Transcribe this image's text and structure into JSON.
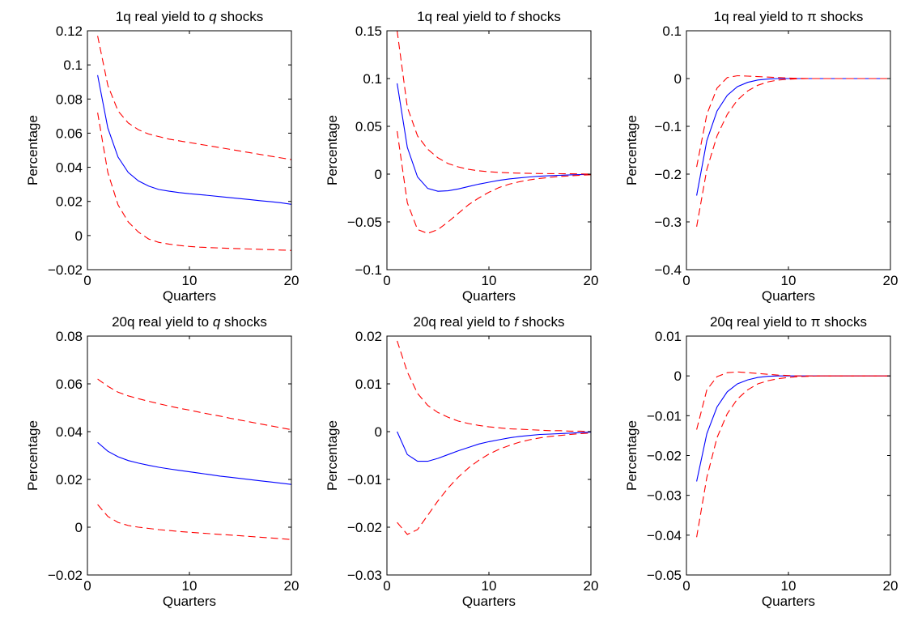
{
  "chart_data": [
    {
      "type": "line",
      "title": {
        "prefix": "1q real yield to ",
        "symbol": "q",
        "suffix": " shocks"
      },
      "xlabel": "Quarters",
      "ylabel": "Percentage",
      "xlim": [
        0,
        20
      ],
      "ylim": [
        -0.02,
        0.12
      ],
      "xticks": [
        0,
        10,
        20
      ],
      "xtick_labels": [
        "0",
        "10",
        "20"
      ],
      "yticks": [
        -0.02,
        0,
        0.02,
        0.04,
        0.06,
        0.08,
        0.1,
        0.12
      ],
      "ytick_labels": [
        "−0.02",
        "0",
        "0.02",
        "0.04",
        "0.06",
        "0.08",
        "0.1",
        "0.12"
      ],
      "x": [
        1,
        2,
        3,
        4,
        5,
        6,
        7,
        8,
        9,
        10,
        11,
        12,
        13,
        14,
        15,
        16,
        17,
        18,
        19,
        20
      ],
      "series": [
        {
          "role": "response",
          "color": "#0000ff",
          "style": "solid",
          "values": [
            0.094,
            0.063,
            0.046,
            0.037,
            0.032,
            0.029,
            0.027,
            0.026,
            0.0252,
            0.0245,
            0.024,
            0.0234,
            0.0228,
            0.0222,
            0.0216,
            0.021,
            0.0204,
            0.0198,
            0.0192,
            0.0183
          ]
        },
        {
          "role": "upper-band",
          "color": "#ff0000",
          "style": "dashed",
          "values": [
            0.117,
            0.088,
            0.073,
            0.066,
            0.062,
            0.0595,
            0.058,
            0.0565,
            0.0555,
            0.0545,
            0.0535,
            0.0525,
            0.0515,
            0.0505,
            0.0495,
            0.0485,
            0.0475,
            0.0465,
            0.0455,
            0.0445
          ]
        },
        {
          "role": "lower-band",
          "color": "#ff0000",
          "style": "dashed",
          "values": [
            0.072,
            0.037,
            0.018,
            0.008,
            0.002,
            -0.002,
            -0.004,
            -0.005,
            -0.0058,
            -0.0064,
            -0.0068,
            -0.0071,
            -0.0073,
            -0.0075,
            -0.0077,
            -0.0079,
            -0.0081,
            -0.0083,
            -0.0085,
            -0.0087
          ]
        }
      ]
    },
    {
      "type": "line",
      "title": {
        "prefix": "1q real yield to ",
        "symbol": "f",
        "suffix": " shocks"
      },
      "xlabel": "Quarters",
      "ylabel": "Percentage",
      "xlim": [
        0,
        20
      ],
      "ylim": [
        -0.1,
        0.15
      ],
      "xticks": [
        0,
        10,
        20
      ],
      "xtick_labels": [
        "0",
        "10",
        "20"
      ],
      "yticks": [
        -0.1,
        -0.05,
        0,
        0.05,
        0.1,
        0.15
      ],
      "ytick_labels": [
        "−0.1",
        "−0.05",
        "0",
        "0.05",
        "0.1",
        "0.15"
      ],
      "x": [
        1,
        2,
        3,
        4,
        5,
        6,
        7,
        8,
        9,
        10,
        11,
        12,
        13,
        14,
        15,
        16,
        17,
        18,
        19,
        20
      ],
      "series": [
        {
          "role": "response",
          "color": "#0000ff",
          "style": "solid",
          "values": [
            0.095,
            0.028,
            -0.003,
            -0.015,
            -0.018,
            -0.0175,
            -0.0155,
            -0.013,
            -0.0105,
            -0.0085,
            -0.0065,
            -0.005,
            -0.004,
            -0.003,
            -0.0022,
            -0.0016,
            -0.0012,
            -0.0008,
            -0.0005,
            -0.0002
          ]
        },
        {
          "role": "upper-band",
          "color": "#ff0000",
          "style": "dashed",
          "values": [
            0.15,
            0.07,
            0.04,
            0.026,
            0.017,
            0.011,
            0.0075,
            0.005,
            0.0035,
            0.0025,
            0.0018,
            0.0013,
            0.001,
            0.0008,
            0.0006,
            0.0005,
            0.0004,
            0.0003,
            0.0002,
            0.0001
          ]
        },
        {
          "role": "lower-band",
          "color": "#ff0000",
          "style": "dashed",
          "values": [
            0.045,
            -0.03,
            -0.058,
            -0.062,
            -0.058,
            -0.05,
            -0.041,
            -0.032,
            -0.025,
            -0.019,
            -0.014,
            -0.0105,
            -0.008,
            -0.006,
            -0.0045,
            -0.0034,
            -0.0025,
            -0.0018,
            -0.0012,
            -0.0007
          ]
        }
      ]
    },
    {
      "type": "line",
      "title": {
        "prefix": "1q real yield to ",
        "symbol": "π",
        "suffix": " shocks"
      },
      "xlabel": "Quarters",
      "ylabel": "Percentage",
      "xlim": [
        0,
        20
      ],
      "ylim": [
        -0.4,
        0.1
      ],
      "xticks": [
        0,
        10,
        20
      ],
      "xtick_labels": [
        "0",
        "10",
        "20"
      ],
      "yticks": [
        -0.4,
        -0.3,
        -0.2,
        -0.1,
        0,
        0.1
      ],
      "ytick_labels": [
        "−0.4",
        "−0.3",
        "−0.2",
        "−0.1",
        "0",
        "0.1"
      ],
      "x": [
        1,
        2,
        3,
        4,
        5,
        6,
        7,
        8,
        9,
        10,
        11,
        12,
        13,
        14,
        15,
        16,
        17,
        18,
        19,
        20
      ],
      "series": [
        {
          "role": "response",
          "color": "#0000ff",
          "style": "solid",
          "values": [
            -0.245,
            -0.13,
            -0.068,
            -0.035,
            -0.017,
            -0.008,
            -0.003,
            -0.001,
            0,
            0,
            0,
            0,
            0,
            0,
            0,
            0,
            0,
            0,
            0,
            0
          ]
        },
        {
          "role": "upper-band",
          "color": "#ff0000",
          "style": "dashed",
          "values": [
            -0.185,
            -0.075,
            -0.02,
            0.002,
            0.006,
            0.005,
            0.004,
            0.003,
            0.002,
            0.001,
            0.0005,
            0,
            0,
            0,
            0,
            0,
            0,
            0,
            0,
            0
          ]
        },
        {
          "role": "lower-band",
          "color": "#ff0000",
          "style": "dashed",
          "values": [
            -0.31,
            -0.19,
            -0.12,
            -0.075,
            -0.045,
            -0.026,
            -0.014,
            -0.007,
            -0.003,
            -0.0015,
            -0.0005,
            0,
            0,
            0,
            0,
            0,
            0,
            0,
            0,
            0
          ]
        }
      ]
    },
    {
      "type": "line",
      "title": {
        "prefix": "20q real yield to ",
        "symbol": "q",
        "suffix": " shocks"
      },
      "xlabel": "Quarters",
      "ylabel": "Percentage",
      "xlim": [
        0,
        20
      ],
      "ylim": [
        -0.02,
        0.08
      ],
      "xticks": [
        0,
        10,
        20
      ],
      "xtick_labels": [
        "0",
        "10",
        "20"
      ],
      "yticks": [
        -0.02,
        0,
        0.02,
        0.04,
        0.06,
        0.08
      ],
      "ytick_labels": [
        "−0.02",
        "0",
        "0.02",
        "0.04",
        "0.06",
        "0.08"
      ],
      "x": [
        1,
        2,
        3,
        4,
        5,
        6,
        7,
        8,
        9,
        10,
        11,
        12,
        13,
        14,
        15,
        16,
        17,
        18,
        19,
        20
      ],
      "series": [
        {
          "role": "response",
          "color": "#0000ff",
          "style": "solid",
          "values": [
            0.0355,
            0.0318,
            0.0295,
            0.0279,
            0.0268,
            0.0259,
            0.0251,
            0.0244,
            0.0238,
            0.0232,
            0.0226,
            0.022,
            0.0214,
            0.0209,
            0.0204,
            0.0199,
            0.0194,
            0.0189,
            0.0184,
            0.0179
          ]
        },
        {
          "role": "upper-band",
          "color": "#ff0000",
          "style": "dashed",
          "values": [
            0.062,
            0.059,
            0.0565,
            0.055,
            0.0538,
            0.0527,
            0.0517,
            0.0507,
            0.0498,
            0.049,
            0.0481,
            0.0473,
            0.0465,
            0.0456,
            0.0448,
            0.044,
            0.0432,
            0.0424,
            0.0416,
            0.0408
          ]
        },
        {
          "role": "lower-band",
          "color": "#ff0000",
          "style": "dashed",
          "values": [
            0.0095,
            0.0045,
            0.002,
            0.0007,
            0,
            -0.0005,
            -0.001,
            -0.0014,
            -0.0018,
            -0.0021,
            -0.0024,
            -0.0027,
            -0.003,
            -0.0033,
            -0.0036,
            -0.0039,
            -0.0042,
            -0.0045,
            -0.0048,
            -0.0052
          ]
        }
      ]
    },
    {
      "type": "line",
      "title": {
        "prefix": "20q real yield to ",
        "symbol": "f",
        "suffix": " shocks"
      },
      "xlabel": "Quarters",
      "ylabel": "Percentage",
      "xlim": [
        0,
        20
      ],
      "ylim": [
        -0.03,
        0.02
      ],
      "xticks": [
        0,
        10,
        20
      ],
      "xtick_labels": [
        "0",
        "10",
        "20"
      ],
      "yticks": [
        -0.03,
        -0.02,
        -0.01,
        0,
        0.01,
        0.02
      ],
      "ytick_labels": [
        "−0.03",
        "−0.02",
        "−0.01",
        "0",
        "0.01",
        "0.02"
      ],
      "x": [
        1,
        2,
        3,
        4,
        5,
        6,
        7,
        8,
        9,
        10,
        11,
        12,
        13,
        14,
        15,
        16,
        17,
        18,
        19,
        20
      ],
      "series": [
        {
          "role": "response",
          "color": "#0000ff",
          "style": "solid",
          "values": [
            0,
            -0.0048,
            -0.0062,
            -0.0062,
            -0.0056,
            -0.0048,
            -0.004,
            -0.0033,
            -0.0026,
            -0.0021,
            -0.0017,
            -0.0013,
            -0.001,
            -0.0008,
            -0.0006,
            -0.0005,
            -0.0004,
            -0.0003,
            -0.0002,
            -0.0001
          ]
        },
        {
          "role": "upper-band",
          "color": "#ff0000",
          "style": "dashed",
          "values": [
            0.019,
            0.0125,
            0.008,
            0.0055,
            0.004,
            0.003,
            0.0022,
            0.0017,
            0.0013,
            0.001,
            0.0008,
            0.0006,
            0.0005,
            0.0004,
            0.0003,
            0.0002,
            0.0002,
            0.0001,
            0.0001,
            0
          ]
        },
        {
          "role": "lower-band",
          "color": "#ff0000",
          "style": "dashed",
          "values": [
            -0.019,
            -0.0215,
            -0.0205,
            -0.0175,
            -0.0145,
            -0.0118,
            -0.0095,
            -0.0076,
            -0.006,
            -0.0047,
            -0.0037,
            -0.0029,
            -0.0022,
            -0.0017,
            -0.0013,
            -0.001,
            -0.0008,
            -0.0006,
            -0.0004,
            -0.0003
          ]
        }
      ]
    },
    {
      "type": "line",
      "title": {
        "prefix": "20q real yield to ",
        "symbol": "π",
        "suffix": " shocks"
      },
      "xlabel": "Quarters",
      "ylabel": "Percentage",
      "xlim": [
        0,
        20
      ],
      "ylim": [
        -0.05,
        0.01
      ],
      "xticks": [
        0,
        10,
        20
      ],
      "xtick_labels": [
        "0",
        "10",
        "20"
      ],
      "yticks": [
        -0.05,
        -0.04,
        -0.03,
        -0.02,
        -0.01,
        0,
        0.01
      ],
      "ytick_labels": [
        "−0.05",
        "−0.04",
        "−0.03",
        "−0.02",
        "−0.01",
        "0",
        "0.01"
      ],
      "x": [
        1,
        2,
        3,
        4,
        5,
        6,
        7,
        8,
        9,
        10,
        11,
        12,
        13,
        14,
        15,
        16,
        17,
        18,
        19,
        20
      ],
      "series": [
        {
          "role": "response",
          "color": "#0000ff",
          "style": "solid",
          "values": [
            -0.0265,
            -0.0145,
            -0.0078,
            -0.004,
            -0.002,
            -0.001,
            -0.0004,
            -0.0001,
            0,
            0,
            0,
            0,
            0,
            0,
            0,
            0,
            0,
            0,
            0,
            0
          ]
        },
        {
          "role": "upper-band",
          "color": "#ff0000",
          "style": "dashed",
          "values": [
            -0.0135,
            -0.0035,
            -0.0002,
            0.0008,
            0.001,
            0.0008,
            0.0006,
            0.0004,
            0.0002,
            0.0001,
            0,
            0,
            0,
            0,
            0,
            0,
            0,
            0,
            0,
            0
          ]
        },
        {
          "role": "lower-band",
          "color": "#ff0000",
          "style": "dashed",
          "values": [
            -0.0405,
            -0.0255,
            -0.0155,
            -0.0095,
            -0.0058,
            -0.0035,
            -0.002,
            -0.0012,
            -0.0007,
            -0.0004,
            -0.0002,
            -0.0001,
            0,
            0,
            0,
            0,
            0,
            0,
            0,
            0
          ]
        }
      ]
    }
  ]
}
